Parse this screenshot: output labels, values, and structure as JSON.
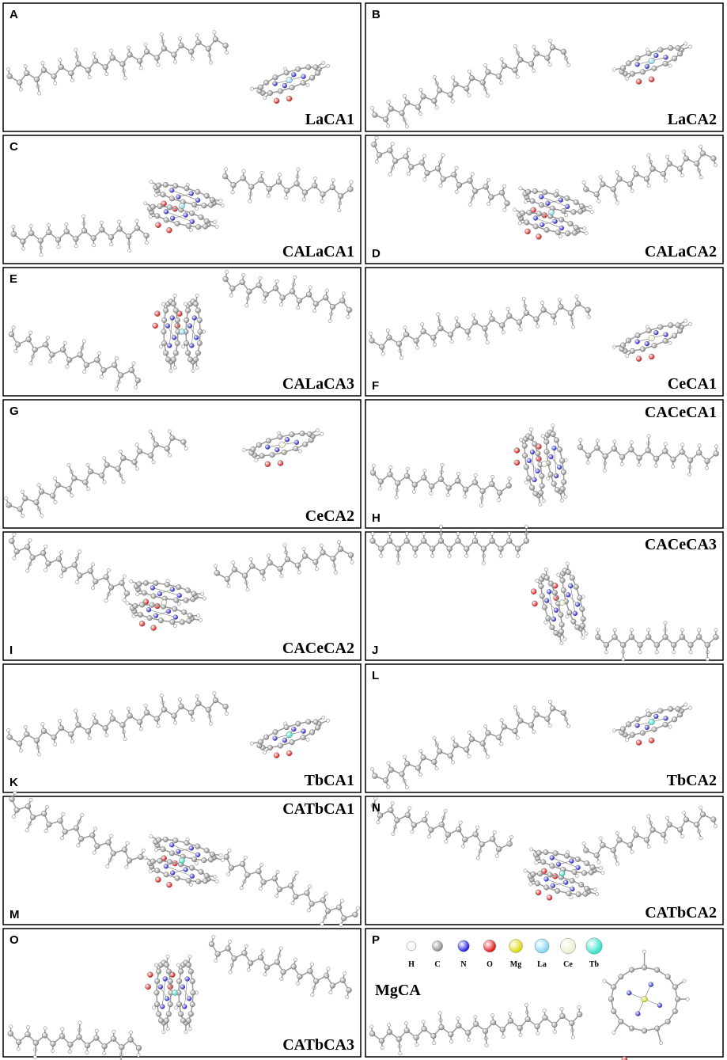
{
  "panels": [
    {
      "letter": "A",
      "name": "LaCA1"
    },
    {
      "letter": "B",
      "name": "LaCA2"
    },
    {
      "letter": "C",
      "name": "CALaCA1"
    },
    {
      "letter": "D",
      "name": "CALaCA2"
    },
    {
      "letter": "E",
      "name": "CALaCA3"
    },
    {
      "letter": "F",
      "name": "CeCA1"
    },
    {
      "letter": "G",
      "name": "CeCA2"
    },
    {
      "letter": "H",
      "name": "CACeCA1"
    },
    {
      "letter": "I",
      "name": "CACeCA2"
    },
    {
      "letter": "J",
      "name": "CACeCA3"
    },
    {
      "letter": "K",
      "name": "TbCA1"
    },
    {
      "letter": "L",
      "name": "TbCA2"
    },
    {
      "letter": "M",
      "name": "CATbCA1"
    },
    {
      "letter": "N",
      "name": "CATbCA2"
    },
    {
      "letter": "O",
      "name": "CATbCA3"
    },
    {
      "letter": "P",
      "name": "MgCA",
      "legend": [
        {
          "label": "H",
          "color": "#f2f2f2"
        },
        {
          "label": "C",
          "color": "#8c8c8c"
        },
        {
          "label": "N",
          "color": "#1a1ae0"
        },
        {
          "label": "O",
          "color": "#e01010"
        },
        {
          "label": "Mg",
          "color": "#d8d800"
        },
        {
          "label": "La",
          "color": "#7fd4f0"
        },
        {
          "label": "Ce",
          "color": "#efeed0"
        },
        {
          "label": "Tb",
          "color": "#30e0c8"
        }
      ]
    }
  ]
}
